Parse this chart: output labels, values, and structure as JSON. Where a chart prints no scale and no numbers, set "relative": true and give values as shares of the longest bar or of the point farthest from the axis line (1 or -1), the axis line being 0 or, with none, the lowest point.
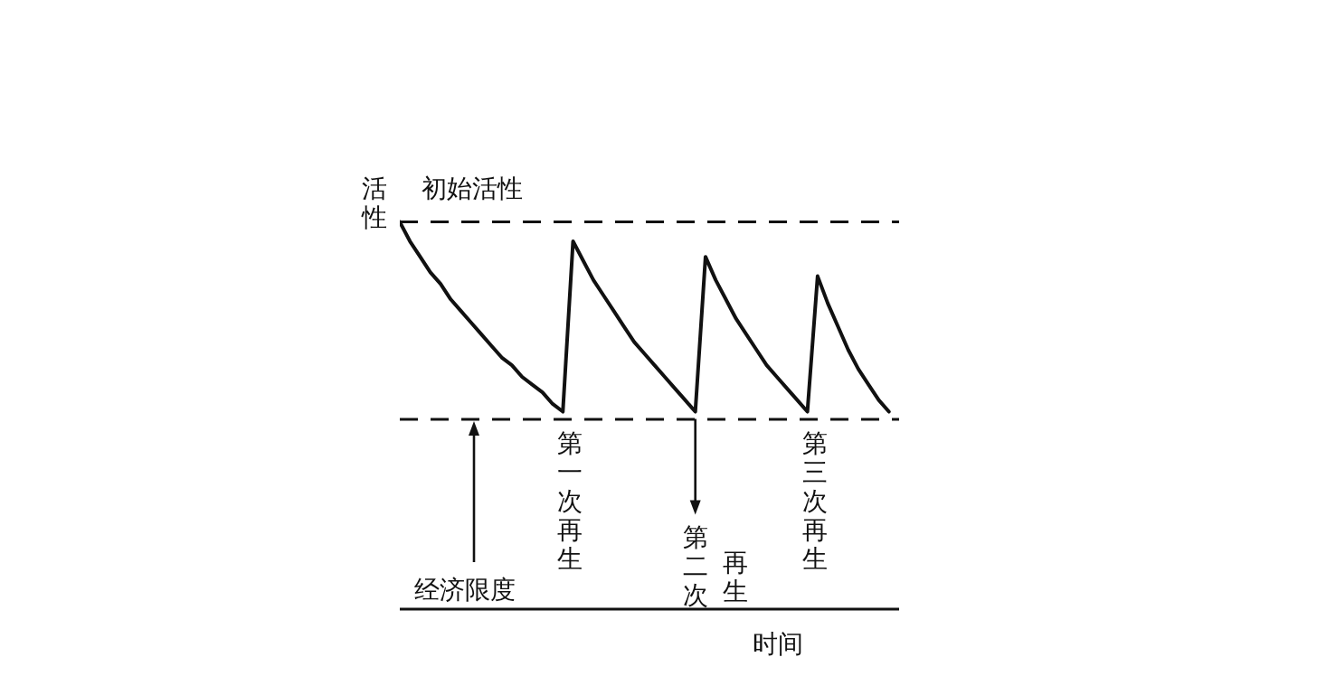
{
  "chart_data": {
    "type": "line",
    "relative": true,
    "xlabel": "时间",
    "ylabel": "活性",
    "categories": [
      null,
      null,
      null,
      null,
      null,
      null,
      null,
      null,
      null,
      null,
      null,
      null,
      null,
      null,
      null,
      null,
      null,
      null,
      null,
      null,
      null,
      null,
      null,
      null,
      null,
      null,
      null,
      null,
      null,
      null,
      null,
      null,
      null,
      null,
      null,
      null,
      null,
      null,
      null,
      null,
      null,
      null,
      null,
      null,
      null,
      null,
      null,
      null,
      null,
      null
    ],
    "series": [
      {
        "color": "#111111",
        "values": [
          1,
          0.95,
          0.91,
          0.87,
          0.84,
          0.8,
          0.77,
          0.74,
          0.71,
          0.68,
          0.65,
          0.63,
          0.6,
          0.58,
          0.56,
          0.53,
          0.51,
          0.95,
          0.9,
          0.85,
          0.81,
          0.77,
          0.73,
          0.69,
          0.66,
          0.63,
          0.6,
          0.57,
          0.54,
          0.51,
          0.91,
          0.85,
          0.8,
          0.75,
          0.71,
          0.67,
          0.63,
          0.6,
          0.57,
          0.54,
          0.51,
          0.86,
          0.79,
          0.73,
          0.67,
          0.62,
          0.58,
          0.54,
          0.51,
          null
        ]
      }
    ],
    "ref_lines": [
      {
        "axis": "y",
        "value": 1,
        "label": "初始活性",
        "line_style": "dashed",
        "color": "#111111"
      },
      {
        "axis": "y",
        "value": 0.49,
        "label": "经济限度",
        "line_style": "dashed",
        "color": "#111111"
      }
    ],
    "annotations": [
      "第一次再生",
      "第二次再生",
      "第三次再生"
    ],
    "marker": "none",
    "line_style": "solid"
  }
}
